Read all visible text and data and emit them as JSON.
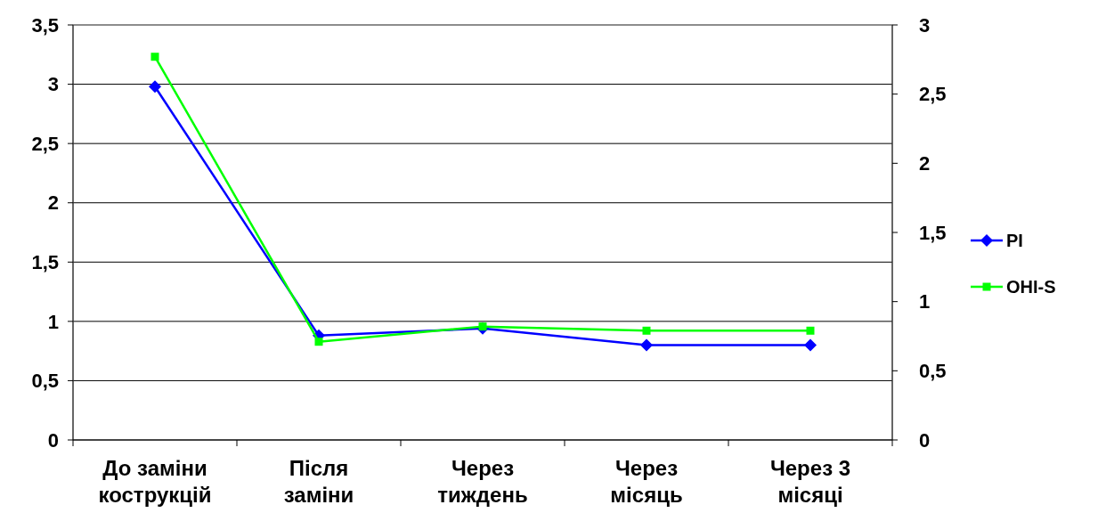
{
  "chart_data": {
    "type": "line",
    "categories": [
      "До заміни кострукцій",
      "Після заміни",
      "Через тиждень",
      "Через місяць",
      "Через 3 місяці"
    ],
    "series": [
      {
        "name": "PI",
        "color": "#0000ff",
        "marker": "diamond",
        "values": [
          2.98,
          0.88,
          0.94,
          0.8,
          0.8
        ]
      },
      {
        "name": "OHI-S",
        "color": "#00ff00",
        "marker": "square",
        "axis": "y2",
        "values": [
          2.77,
          0.71,
          0.82,
          0.79,
          0.79
        ]
      }
    ],
    "ylim": [
      0,
      3.5
    ],
    "yticks": [
      {
        "value": 0,
        "label": "0"
      },
      {
        "value": 0.5,
        "label": "0,5"
      },
      {
        "value": 1,
        "label": "1"
      },
      {
        "value": 1.5,
        "label": "1,5"
      },
      {
        "value": 2,
        "label": "2"
      },
      {
        "value": 2.5,
        "label": "2,5"
      },
      {
        "value": 3,
        "label": "3"
      },
      {
        "value": 3.5,
        "label": "3,5"
      }
    ],
    "y2lim": [
      0,
      3
    ],
    "y2ticks": [
      {
        "value": 0,
        "label": "0"
      },
      {
        "value": 0.5,
        "label": "0,5"
      },
      {
        "value": 1,
        "label": "1"
      },
      {
        "value": 1.5,
        "label": "1,5"
      },
      {
        "value": 2,
        "label": "2"
      },
      {
        "value": 2.5,
        "label": "2,5"
      },
      {
        "value": 3,
        "label": "3"
      }
    ],
    "grid": "y",
    "legend": "right"
  }
}
